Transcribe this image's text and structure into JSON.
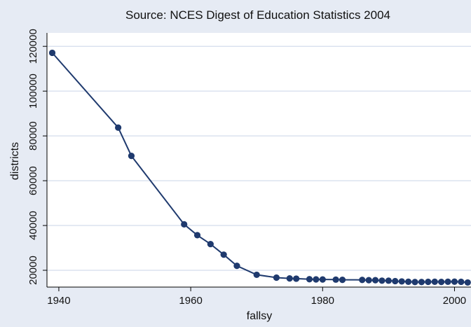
{
  "chart_data": {
    "type": "line",
    "title": "Source: NCES Digest of Education Statistics 2004",
    "xlabel": "fallsy",
    "ylabel": "districts",
    "xlim": [
      1938.2,
      2002.5
    ],
    "ylim": [
      12500,
      126000
    ],
    "xticks": [
      1940,
      1960,
      1980,
      2000
    ],
    "yticks": [
      20000,
      40000,
      60000,
      80000,
      100000,
      120000
    ],
    "grid": "horizontal",
    "series": [
      {
        "color": "#1f3a6e",
        "marker": "circle",
        "x": [
          1939,
          1949,
          1951,
          1959,
          1961,
          1963,
          1965,
          1967,
          1970,
          1973,
          1975,
          1976,
          1978,
          1979,
          1980,
          1982,
          1983,
          1986,
          1987,
          1988,
          1989,
          1990,
          1991,
          1992,
          1993,
          1994,
          1995,
          1996,
          1997,
          1998,
          1999,
          2000,
          2001,
          2002
        ],
        "y": [
          117108,
          83718,
          71094,
          40520,
          35676,
          31705,
          26983,
          21990,
          17995,
          16730,
          16376,
          16271,
          16014,
          15929,
          15912,
          15840,
          15747,
          15713,
          15577,
          15581,
          15376,
          15367,
          15173,
          15025,
          14881,
          14772,
          14766,
          14841,
          14883,
          14805,
          14891,
          14928,
          14859,
          14559
        ]
      }
    ]
  }
}
